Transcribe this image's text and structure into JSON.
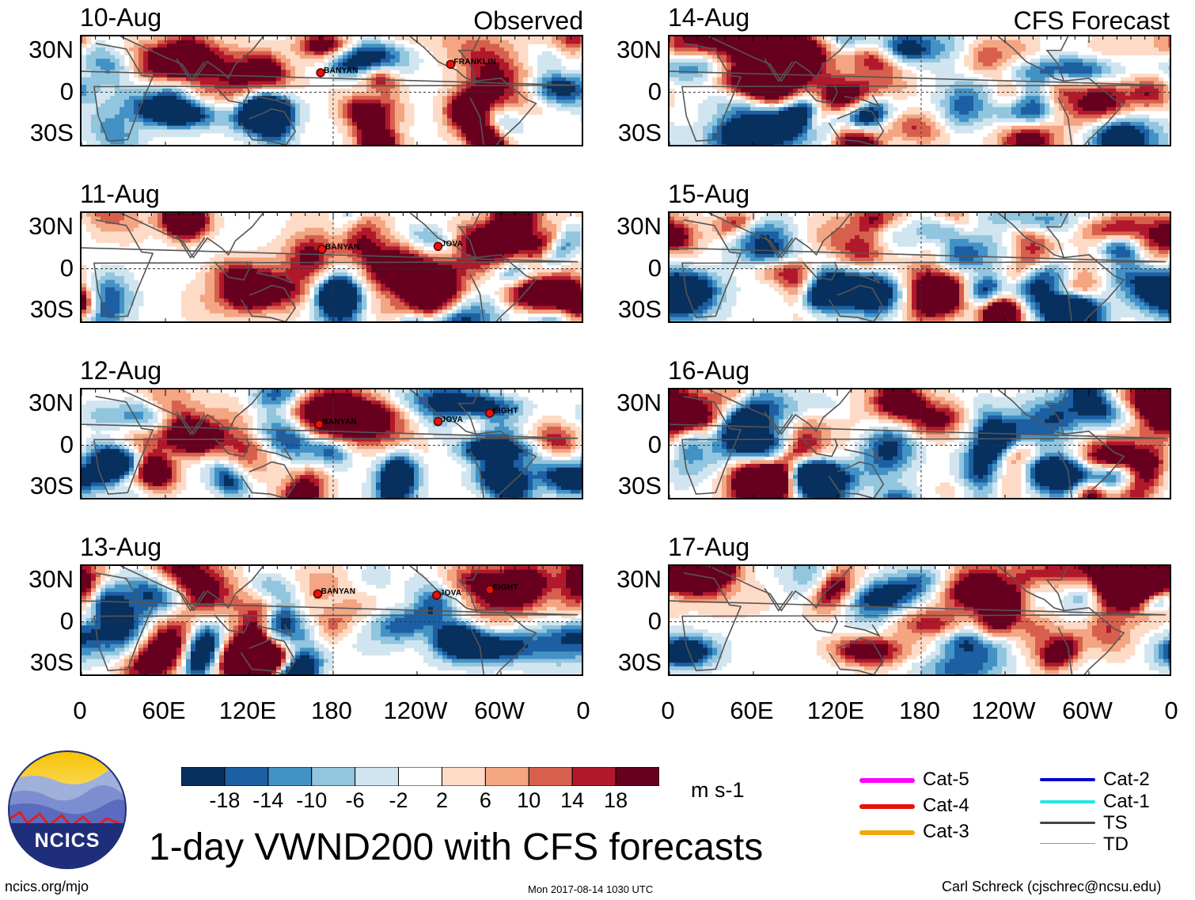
{
  "corner_labels": {
    "observed": "Observed",
    "forecast": "CFS Forecast"
  },
  "panels": [
    {
      "date": "10-Aug",
      "storms": [
        {
          "name": "BANYAN",
          "lon": 171,
          "lat": 14
        },
        {
          "name": "FRANKLIN",
          "lon": 264,
          "lat": 20
        }
      ]
    },
    {
      "date": "11-Aug",
      "storms": [
        {
          "name": "BANYAN",
          "lon": 172,
          "lat": 14
        },
        {
          "name": "JOVA",
          "lon": 255,
          "lat": 16
        }
      ]
    },
    {
      "date": "12-Aug",
      "storms": [
        {
          "name": "BANYAN",
          "lon": 170,
          "lat": 15
        },
        {
          "name": "JOVA",
          "lon": 255,
          "lat": 17
        },
        {
          "name": "EIGHT",
          "lon": 292,
          "lat": 23
        }
      ]
    },
    {
      "date": "13-Aug",
      "storms": [
        {
          "name": "BANYAN",
          "lon": 169,
          "lat": 20
        },
        {
          "name": "JOVA",
          "lon": 254,
          "lat": 19
        },
        {
          "name": "EIGHT",
          "lon": 292,
          "lat": 23
        }
      ]
    },
    {
      "date": "14-Aug",
      "storms": []
    },
    {
      "date": "15-Aug",
      "storms": []
    },
    {
      "date": "16-Aug",
      "storms": []
    },
    {
      "date": "17-Aug",
      "storms": []
    }
  ],
  "chart_data": {
    "type": "heatmap",
    "title": "1-day VWND200 with CFS forecasts",
    "variable": "200 hPa meridional wind",
    "units": "m s-1",
    "x_ticks": [
      "0",
      "60E",
      "120E",
      "180",
      "120W",
      "60W",
      "0"
    ],
    "x_range_deg": [
      0,
      360
    ],
    "y_ticks": [
      "30N",
      "0",
      "30S"
    ],
    "y_range_deg": [
      -40,
      40
    ],
    "colorbar": {
      "ticks": [
        "-18",
        "-14",
        "-10",
        "-6",
        "-2",
        "2",
        "6",
        "10",
        "14",
        "18"
      ],
      "bins": [
        -22,
        -18,
        -14,
        -10,
        -6,
        -2,
        2,
        6,
        10,
        14,
        18,
        22
      ],
      "colors": [
        "#08305e",
        "#1d5fa3",
        "#4292c6",
        "#92c5de",
        "#d1e5f0",
        "#ffffff",
        "#fddbc7",
        "#f4a582",
        "#d6604d",
        "#b2182b",
        "#67001f"
      ]
    }
  },
  "legend": {
    "items": [
      {
        "label": "Cat-5",
        "color": "#ff00ff",
        "width": 6
      },
      {
        "label": "Cat-4",
        "color": "#e8120a",
        "width": 6
      },
      {
        "label": "Cat-3",
        "color": "#f2a70e",
        "width": 6
      },
      {
        "label": "Cat-2",
        "color": "#0000d0",
        "width": 4
      },
      {
        "label": "Cat-1",
        "color": "#22e6e6",
        "width": 4
      },
      {
        "label": "TS",
        "color": "#444444",
        "width": 3
      },
      {
        "label": "TD",
        "color": "#999999",
        "width": 1.5
      }
    ]
  },
  "logo": {
    "text": "NCICS"
  },
  "footer": {
    "left": "ncics.org/mjo",
    "center": "Mon 2017-08-14 1030 UTC",
    "right": "Carl Schreck (cjschrec@ncsu.edu)"
  }
}
